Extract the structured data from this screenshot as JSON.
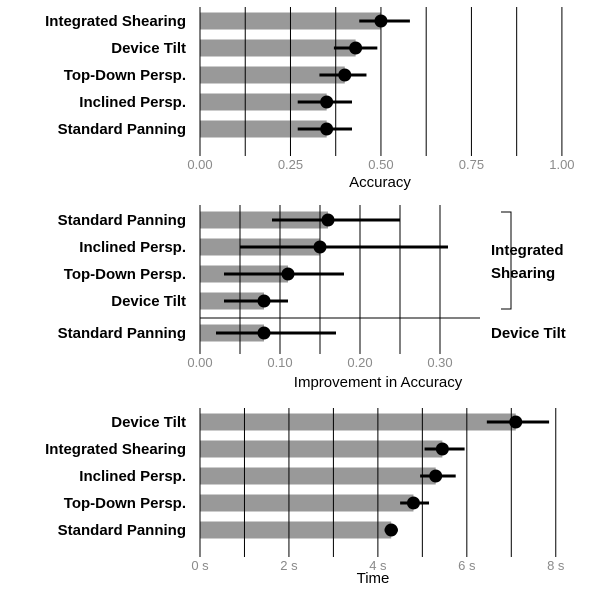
{
  "chart_data": [
    {
      "type": "bar",
      "xlabel": "Accuracy",
      "xlim": [
        0,
        1.05
      ],
      "ticks": [
        0,
        0.25,
        0.5,
        0.75,
        1.0
      ],
      "tick_labels": [
        "0.00",
        "0.25",
        "0.50",
        "0.75",
        "1.00"
      ],
      "minor_grid": [
        0.125,
        0.375,
        0.625,
        0.875
      ],
      "bar_color": "#999999",
      "rows": [
        {
          "label": "Integrated Shearing",
          "value": 0.5,
          "ci": [
            0.44,
            0.58
          ]
        },
        {
          "label": "Device Tilt",
          "value": 0.43,
          "ci": [
            0.37,
            0.49
          ]
        },
        {
          "label": "Top-Down Persp.",
          "value": 0.4,
          "ci": [
            0.33,
            0.46
          ]
        },
        {
          "label": "Inclined Persp.",
          "value": 0.35,
          "ci": [
            0.27,
            0.42
          ]
        },
        {
          "label": "Standard Panning",
          "value": 0.35,
          "ci": [
            0.27,
            0.42
          ]
        }
      ]
    },
    {
      "type": "bar",
      "xlabel": "Improvement in Accuracy",
      "xlim": [
        0,
        0.35
      ],
      "ticks": [
        0,
        0.1,
        0.2,
        0.3
      ],
      "tick_labels": [
        "0.00",
        "0.10",
        "0.20",
        "0.30"
      ],
      "minor_grid": [
        0.05,
        0.15,
        0.25
      ],
      "bar_color": "#999999",
      "groups": [
        {
          "label": "Integrated Shearing",
          "lines": [
            "Integrated",
            "Shearing"
          ],
          "rows": 4
        },
        {
          "label": "Device Tilt",
          "lines": [
            "Device Tilt"
          ],
          "rows": 1
        }
      ],
      "rows": [
        {
          "label": "Standard Panning",
          "value": 0.16,
          "ci": [
            0.09,
            0.25
          ]
        },
        {
          "label": "Inclined Persp.",
          "value": 0.15,
          "ci": [
            0.05,
            0.31
          ]
        },
        {
          "label": "Top-Down Persp.",
          "value": 0.11,
          "ci": [
            0.03,
            0.18
          ]
        },
        {
          "label": "Device Tilt",
          "value": 0.08,
          "ci": [
            0.03,
            0.11
          ]
        },
        {
          "label": "Standard Panning",
          "value": 0.08,
          "ci": [
            0.02,
            0.17
          ]
        }
      ]
    },
    {
      "type": "bar",
      "xlabel": "Time",
      "xlim": [
        0,
        8.5
      ],
      "ticks": [
        0,
        2,
        4,
        6,
        8
      ],
      "tick_labels": [
        "0 s",
        "2 s",
        "4 s",
        "6 s",
        "8 s"
      ],
      "minor_grid": [
        1,
        3,
        5,
        7
      ],
      "bar_color": "#999999",
      "rows": [
        {
          "label": "Device Tilt",
          "value": 7.1,
          "ci": [
            6.45,
            7.85
          ]
        },
        {
          "label": "Integrated Shearing",
          "value": 5.45,
          "ci": [
            5.05,
            5.95
          ]
        },
        {
          "label": "Inclined Persp.",
          "value": 5.3,
          "ci": [
            4.95,
            5.75
          ]
        },
        {
          "label": "Top-Down Persp.",
          "value": 4.8,
          "ci": [
            4.5,
            5.15
          ]
        },
        {
          "label": "Standard Panning",
          "value": 4.3,
          "ci": [
            4.15,
            4.45
          ]
        }
      ]
    }
  ]
}
